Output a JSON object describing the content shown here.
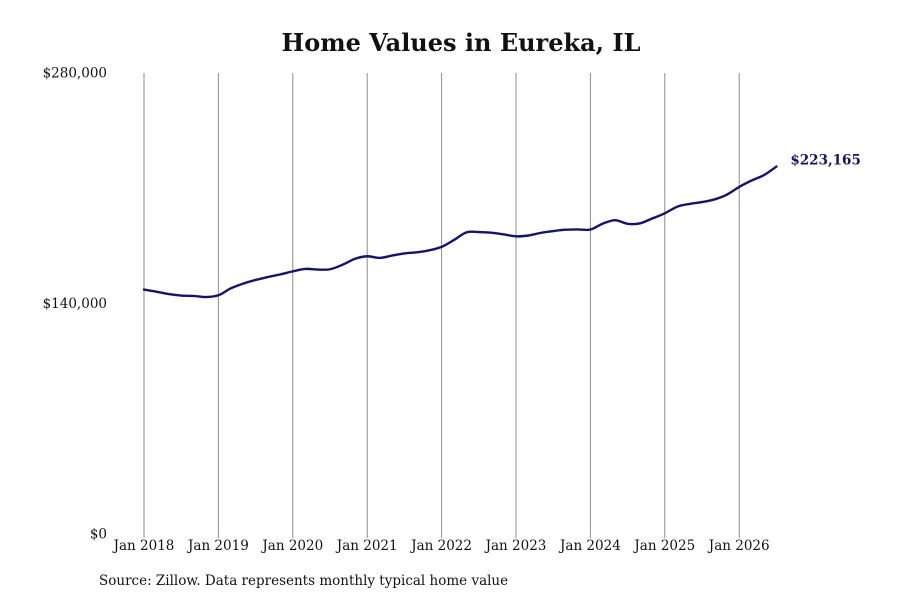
{
  "chart_data": {
    "type": "line",
    "title": "Home Values in Eureka, IL",
    "xlabel": "",
    "ylabel": "",
    "ylim": [
      0,
      280000
    ],
    "yticks": [
      {
        "value": 0,
        "label": "$0"
      },
      {
        "value": 140000,
        "label": "$140,000"
      },
      {
        "value": 280000,
        "label": "$280,000"
      }
    ],
    "xticks": [
      {
        "value": "2018-01",
        "label": "Jan 2018"
      },
      {
        "value": "2019-01",
        "label": "Jan 2019"
      },
      {
        "value": "2020-01",
        "label": "Jan 2020"
      },
      {
        "value": "2021-01",
        "label": "Jan 2021"
      },
      {
        "value": "2022-01",
        "label": "Jan 2022"
      },
      {
        "value": "2023-01",
        "label": "Jan 2023"
      },
      {
        "value": "2024-01",
        "label": "Jan 2024"
      },
      {
        "value": "2025-01",
        "label": "Jan 2025"
      },
      {
        "value": "2026-01",
        "label": "Jan 2026"
      }
    ],
    "grid": "vertical",
    "legend": "none",
    "line_color": "#14146b",
    "end_label": "$223,165",
    "series": [
      {
        "x": [
          "2018-01",
          "2018-03",
          "2018-05",
          "2018-07",
          "2018-09",
          "2018-11",
          "2019-01",
          "2019-03",
          "2019-05",
          "2019-07",
          "2019-09",
          "2019-11",
          "2020-01",
          "2020-03",
          "2020-05",
          "2020-07",
          "2020-09",
          "2020-11",
          "2021-01",
          "2021-03",
          "2021-05",
          "2021-07",
          "2021-09",
          "2021-11",
          "2022-01",
          "2022-03",
          "2022-05",
          "2022-07",
          "2022-09",
          "2022-11",
          "2023-01",
          "2023-03",
          "2023-05",
          "2023-07",
          "2023-09",
          "2023-11",
          "2024-01",
          "2024-03",
          "2024-05",
          "2024-07",
          "2024-09",
          "2024-11",
          "2025-01",
          "2025-03",
          "2025-05",
          "2025-07",
          "2025-09",
          "2025-11",
          "2026-01",
          "2026-03",
          "2026-05",
          "2026-07"
        ],
        "values": [
          148500,
          147200,
          145700,
          144800,
          144600,
          143900,
          145000,
          149200,
          152100,
          154300,
          156100,
          157700,
          159500,
          161000,
          160600,
          160800,
          163500,
          167100,
          168700,
          167700,
          169100,
          170400,
          171100,
          172300,
          174400,
          178600,
          183200,
          183400,
          183000,
          182000,
          180800,
          181300,
          182900,
          184000,
          184800,
          185000,
          184900,
          188500,
          190600,
          188400,
          188700,
          191700,
          194800,
          198800,
          200500,
          201600,
          203200,
          206100,
          210800,
          214700,
          218000,
          223165
        ]
      }
    ]
  }
}
